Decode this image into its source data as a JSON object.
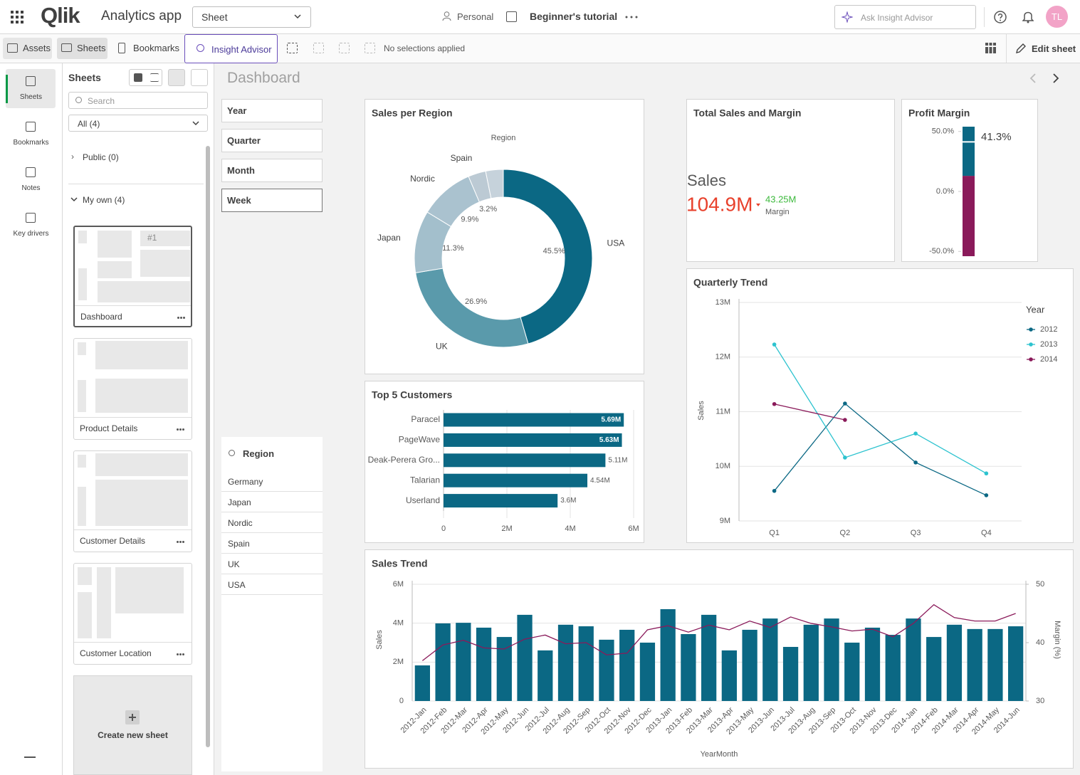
{
  "top_bar": {
    "logo": "Qlik",
    "app_name": "Analytics app",
    "sheet_menu": "Sheet",
    "space": "Personal",
    "tutorial": "Beginner's tutorial",
    "insight_search": "Ask Insight Advisor",
    "avatar": "TL"
  },
  "toolbar": {
    "assets": "Assets",
    "sheets": "Sheets",
    "bookmarks": "Bookmarks",
    "insight_advisor": "Insight Advisor",
    "selections": "No selections applied",
    "edit_sheet": "Edit sheet"
  },
  "left_rail": [
    "Sheets",
    "Bookmarks",
    "Notes",
    "Key drivers"
  ],
  "sheets_panel": {
    "title": "Sheets",
    "search": "Search",
    "filter": "All (4)",
    "public": "Public (0)",
    "my_own": "My own (4)",
    "thumbnail_label": "#1",
    "sheets": [
      "Dashboard",
      "Product Details",
      "Customer Details",
      "Customer Location"
    ],
    "create": "Create new sheet"
  },
  "sheet_title": "Dashboard",
  "filter_panes": [
    "Year",
    "Quarter",
    "Month",
    "Week"
  ],
  "region_list": {
    "title": "Region",
    "items": [
      "Germany",
      "Japan",
      "Nordic",
      "Spain",
      "UK",
      "USA"
    ]
  },
  "chart_data": [
    {
      "type": "pie",
      "title": "Sales per Region",
      "legend_title": "Region",
      "categories": [
        "USA",
        "UK",
        "Japan",
        "Nordic",
        "Spain",
        null
      ],
      "values": [
        45.5,
        26.9,
        11.3,
        9.9,
        3.2,
        3.2
      ],
      "value_labels": [
        "45.5%",
        "26.9%",
        "11.3%",
        "9.9%",
        "3.2%",
        null
      ],
      "colors": [
        "#0b6884",
        "#5a9aab",
        "#a3bfcc",
        "#aac2cf",
        "#bccad4",
        "#c6d2db"
      ]
    },
    {
      "type": "bar",
      "title": "Top 5 Customers",
      "categories": [
        "Paracel",
        "PageWave",
        "Deak-Perera Gro...",
        "Talarian",
        "Userland"
      ],
      "values": [
        5690000,
        5630000,
        5110000,
        4540000,
        3600000
      ],
      "value_labels": [
        "5.69M",
        "5.63M",
        "5.11M",
        "4.54M",
        "3.6M"
      ],
      "color": "#0b6884",
      "xlim": [
        0,
        6000000
      ],
      "xticks": [
        0,
        {
          "value": 2000000,
          "label": "2M"
        },
        {
          "value": 4000000,
          "label": "4M"
        },
        {
          "value": 6000000,
          "label": "6M"
        }
      ],
      "grid": true
    },
    {
      "type": "kpi",
      "title": "Total Sales and Margin",
      "measures": [
        {
          "name": "Sales",
          "value": 104900000,
          "value_label": "104.9M",
          "color": "#e8412c"
        },
        {
          "name": "Margin",
          "value": 43250000,
          "value_label": "43.25M",
          "color": "#3cb93c"
        }
      ]
    },
    {
      "type": "gauge",
      "title": "Profit Margin",
      "value": 41.3,
      "value_label": "41.3%",
      "ylim": [
        -54,
        54
      ],
      "yticks": [
        {
          "value": 50,
          "label": "50.0%"
        },
        {
          "value": 0,
          "label": "0.0%"
        },
        {
          "value": -50,
          "label": "-50.0%"
        }
      ],
      "segment_limit": 13,
      "colors": [
        "#8a1a5a",
        "#0b6884"
      ]
    },
    {
      "type": "line",
      "title": "Quarterly Trend",
      "y_label": "Sales",
      "legend_title": "Year",
      "categories": [
        "Q1",
        "Q2",
        "Q3",
        "Q4"
      ],
      "series": [
        {
          "name": "2012",
          "color": "#0b6884",
          "values": [
            9550000,
            11150000,
            10070000,
            9470000
          ]
        },
        {
          "name": "2013",
          "color": "#2dc3cf",
          "values": [
            12230000,
            10160000,
            10600000,
            9870000
          ]
        },
        {
          "name": "2014",
          "color": "#8a1a5a",
          "values": [
            11140000,
            10850000,
            null,
            null
          ]
        }
      ],
      "ylim": [
        9000000,
        13000000
      ],
      "yticks": [
        {
          "value": 9000000,
          "label": "9M"
        },
        {
          "value": 10000000,
          "label": "10M"
        },
        {
          "value": 11000000,
          "label": "11M"
        },
        {
          "value": 12000000,
          "label": "12M"
        },
        {
          "value": 13000000,
          "label": "13M"
        }
      ],
      "grid": true
    },
    {
      "type": "combo",
      "title": "Sales Trend",
      "x_label": "YearMonth",
      "y_label": "Sales",
      "y2_label": "Margin (%)",
      "categories": [
        "2012-Jan",
        "2012-Feb",
        "2012-Mar",
        "2012-Apr",
        "2012-May",
        "2012-Jun",
        "2012-Jul",
        "2012-Aug",
        "2012-Sep",
        "2012-Oct",
        "2012-Nov",
        "2012-Dec",
        "2013-Jan",
        "2013-Feb",
        "2013-Mar",
        "2013-Apr",
        "2013-May",
        "2013-Jun",
        "2013-Jul",
        "2013-Aug",
        "2013-Sep",
        "2013-Oct",
        "2013-Nov",
        "2013-Dec",
        "2014-Jan",
        "2014-Feb",
        "2014-Mar",
        "2014-Apr",
        "2014-May",
        "2014-Jun"
      ],
      "series": [
        {
          "type": "bar",
          "color": "#0b6884",
          "values": [
            1830000,
            3990000,
            4020000,
            3770000,
            3290000,
            4430000,
            2600000,
            3920000,
            3840000,
            3150000,
            3660000,
            3000000,
            4720000,
            3440000,
            4430000,
            2600000,
            3660000,
            4240000,
            2780000,
            3920000,
            4240000,
            3000000,
            3770000,
            3400000,
            4240000,
            3290000,
            3920000,
            3700000,
            3700000,
            3840000
          ]
        },
        {
          "type": "line",
          "axis": "y2",
          "color": "#8a1a5a",
          "values": [
            36.9,
            39.6,
            40.4,
            39.1,
            38.9,
            40.6,
            41.3,
            39.8,
            40.0,
            37.9,
            38.2,
            42.2,
            42.9,
            41.8,
            43.0,
            42.2,
            43.7,
            42.6,
            44.4,
            43.3,
            42.7,
            42.0,
            42.3,
            41.0,
            43.3,
            46.5,
            44.3,
            43.7,
            43.7,
            45.0
          ]
        }
      ],
      "ylim": [
        0,
        6000000
      ],
      "yticks": [
        0,
        {
          "value": 2000000,
          "label": "2M"
        },
        {
          "value": 4000000,
          "label": "4M"
        },
        {
          "value": 6000000,
          "label": "6M"
        }
      ],
      "y2lim": [
        30,
        50
      ],
      "y2ticks": [
        30,
        40,
        50
      ],
      "grid": true
    }
  ]
}
